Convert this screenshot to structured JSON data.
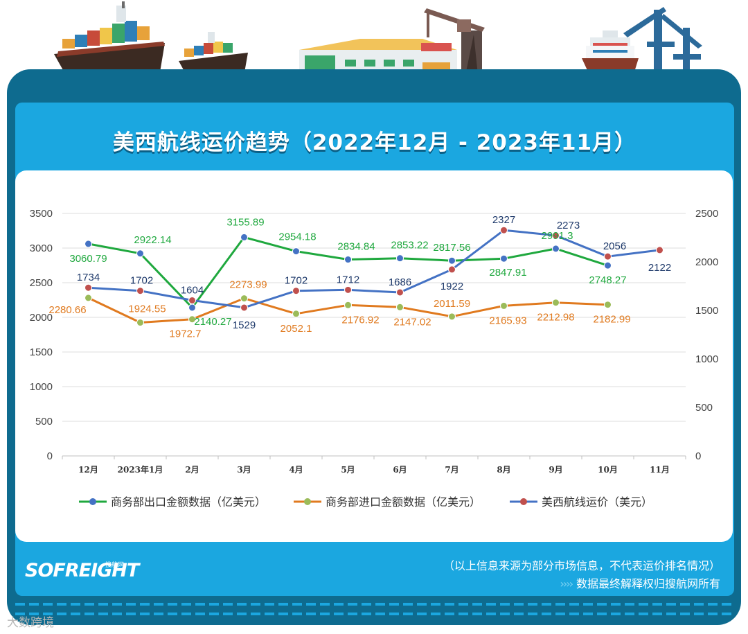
{
  "title": "美西航线运价趋势（2022年12月 - 2023年11月）",
  "footer": {
    "logo": "SOFREIGHT",
    "logo_sub": "搜航网",
    "disclaimer": "（以上信息来源为部分市场信息，不代表运价排名情况）",
    "source_chevrons": "››››",
    "source": "数据最终解释权归搜航网所有"
  },
  "watermark": "大数跨境",
  "colors": {
    "export": "#1fa83e",
    "import": "#e07a1f",
    "freight": "#4472c4",
    "freight_marker": "#c0504d",
    "import_marker": "#9bbb59",
    "frame": "#0e6b8f",
    "panel": "#1ba7e0"
  },
  "chart_data": {
    "type": "line",
    "categories": [
      "12月",
      "2023年1月",
      "2月",
      "3月",
      "4月",
      "5月",
      "6月",
      "7月",
      "8月",
      "9月",
      "10月",
      "11月"
    ],
    "y_left_ticks": [
      "0",
      "500",
      "1000",
      "1500",
      "2000",
      "2500",
      "3000",
      "3500"
    ],
    "y_right_ticks": [
      "0",
      "500",
      "1000",
      "1500",
      "2000",
      "2500"
    ],
    "y_left_range": [
      0,
      3500
    ],
    "y_right_range": [
      0,
      2500
    ],
    "legend_position": "bottom",
    "grid": "horizontal",
    "series": [
      {
        "name": "商务部出口金额数据（亿美元）",
        "axis": "left",
        "values": [
          3060.79,
          2922.14,
          2140.27,
          3155.89,
          2954.18,
          2834.84,
          2853.22,
          2817.56,
          2847.91,
          2991.3,
          2748.27,
          null
        ],
        "labels": [
          "3060.79",
          "2922.14",
          "2140.27",
          "3155.89",
          "2954.18",
          "2834.84",
          "2853.22",
          "2817.56",
          "2847.91",
          "2991.3",
          "2748.27",
          ""
        ]
      },
      {
        "name": "商务部进口金额数据（亿美元）",
        "axis": "left",
        "values": [
          2280.66,
          1924.55,
          1972.7,
          2273.99,
          2052.1,
          2176.92,
          2147.02,
          2011.59,
          2165.93,
          2212.98,
          2182.99,
          null
        ],
        "labels": [
          "2280.66",
          "1924.55",
          "1972.7",
          "2273.99",
          "2052.1",
          "2176.92",
          "2147.02",
          "2011.59",
          "2165.93",
          "2212.98",
          "2182.99",
          ""
        ]
      },
      {
        "name": "美西航线运价（美元）",
        "axis": "right",
        "values": [
          1734,
          1702,
          1604,
          1529,
          1702,
          1712,
          1686,
          1922,
          2327,
          2273,
          2056,
          2122
        ],
        "labels": [
          "1734",
          "1702",
          "1604",
          "1529",
          "1702",
          "1712",
          "1686",
          "1922",
          "2327",
          "2273",
          "2056",
          "2122"
        ]
      }
    ]
  }
}
